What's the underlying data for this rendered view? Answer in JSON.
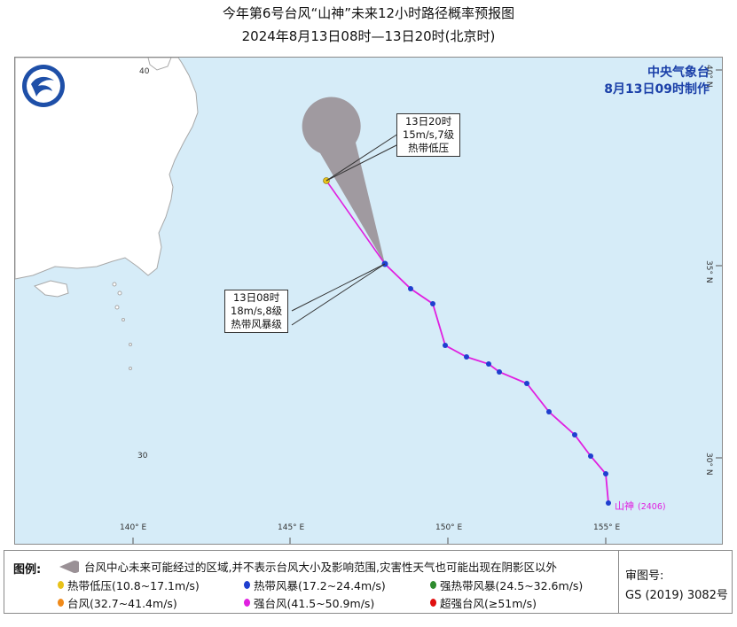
{
  "title": {
    "line1": "今年第6号台风“山神”未来12小时路径概率预报图",
    "line2": "2024年8月13日08时—13日20时(北京时)"
  },
  "agency": {
    "name": "中央气象台",
    "made": "8月13日09时制作"
  },
  "map": {
    "lon_ticks": [
      "140° E",
      "145° E",
      "150° E",
      "155° E"
    ],
    "lat_ticks": [
      "40° N",
      "35° N",
      "30° N"
    ],
    "faint_labels": [
      "40",
      "30"
    ]
  },
  "typhoon": {
    "name": "山神",
    "code": "(2406)",
    "current": {
      "line1": "13日08时",
      "line2": "18m/s,8级",
      "line3": "热带风暴级"
    },
    "forecast": {
      "line1": "13日20时",
      "line2": "15m/s,7级",
      "line3": "热带低压"
    },
    "track_colors": {
      "past": "#e020e0",
      "cone": "#9a9196"
    }
  },
  "legend": {
    "title": "图例:",
    "cone_note": "台风中心未来可能经过的区域,并不表示台风大小及影响范围,灾害性天气也可能出现在阴影区以外",
    "categories": [
      {
        "label": "热带低压(10.8~17.1m/s)",
        "color": "#e8c21a"
      },
      {
        "label": "热带风暴(17.2~24.4m/s)",
        "color": "#1f3fcf"
      },
      {
        "label": "强热带风暴(24.5~32.6m/s)",
        "color": "#2e8b2e"
      },
      {
        "label": "台风(32.7~41.4m/s)",
        "color": "#f08a1a"
      },
      {
        "label": "强台风(41.5~50.9m/s)",
        "color": "#e020e0"
      },
      {
        "label": "超强台风(≥51m/s)",
        "color": "#e01010"
      }
    ],
    "review_label": "审图号:",
    "review_number": "GS (2019) 3082号"
  },
  "colors": {
    "sea": "#d6ecf8",
    "land": "#ffffff",
    "coast": "#a8a8a8",
    "grid": "#b9c9d4"
  }
}
